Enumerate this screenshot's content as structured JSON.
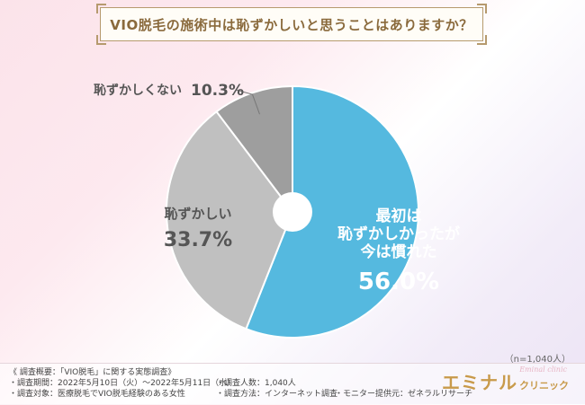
{
  "title": "VIO脱毛の施術中は恥ずかしいと思うことはありますか？",
  "sample": "（n=1,040人）",
  "chart_data": {
    "type": "pie",
    "title": "VIO脱毛の施術中は恥ずかしいと思うことはありますか？",
    "slices": [
      {
        "name_lines": [
          "最初は",
          "恥ずかしかったが",
          "今は慣れた"
        ],
        "value": 56.0,
        "label": "56.0%",
        "color": "#55b9df"
      },
      {
        "name_lines": [
          "恥ずかしい"
        ],
        "value": 33.7,
        "label": "33.7%",
        "color": "#c0c0c0"
      },
      {
        "name_lines": [
          "恥ずかしくない"
        ],
        "value": 10.3,
        "label": "10.3%",
        "color": "#9e9e9e"
      }
    ]
  },
  "footer": {
    "left": [
      "《 調査概要：「VIO脱毛」に関する実態調査》",
      "・調査期間：2022年5月10日（火）〜2022年5月11日（水）",
      "・調査対象：医療脱毛でVIO脱毛経験のある女性"
    ],
    "mid": [
      "・調査人数：1,040人",
      "・調査方法：インターネット調査"
    ],
    "right": "・モニター提供元：ゼネラルリサーチ"
  },
  "logo": {
    "main": "エミナル",
    "sub": "クリニック",
    "script": "Eminal clinic"
  }
}
